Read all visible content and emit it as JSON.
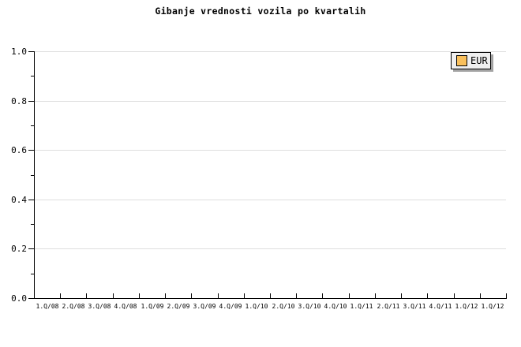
{
  "chart_data": {
    "type": "line",
    "title": "Gibanje vrednosti vozila po kvartalih",
    "categories": [
      "1.Q/08",
      "2.Q/08",
      "3.Q/08",
      "4.Q/08",
      "1.Q/09",
      "2.Q/09",
      "3.Q/09",
      "4.Q/09",
      "1.Q/10",
      "2.Q/10",
      "3.Q/10",
      "4.Q/10",
      "1.Q/11",
      "2.Q/11",
      "3.Q/11",
      "4.Q/11",
      "1.Q/12",
      "1.Q/12"
    ],
    "series": [
      {
        "name": "EUR",
        "values": []
      }
    ],
    "xlabel": "",
    "ylabel": "",
    "ylim": [
      0.0,
      1.0
    ],
    "y_major_step": 0.2,
    "y_minor_step": 0.1,
    "y_tick_labels": [
      "0.0",
      "0.2",
      "0.4",
      "0.6",
      "0.8",
      "1.0"
    ],
    "grid": "horizontal-major-only",
    "legend_position": "top-right",
    "plot_empty": true
  },
  "legend": {
    "label": "EUR",
    "swatch_color": "#f9c05c"
  },
  "colors": {
    "background": "#ffffff",
    "axis": "#000000",
    "gridline": "#dedede",
    "text": "#000000",
    "legend_bg": "#efefef",
    "legend_border": "#000000",
    "legend_shadow": "#a3a3a3",
    "series_eur": "#f9c05c"
  }
}
